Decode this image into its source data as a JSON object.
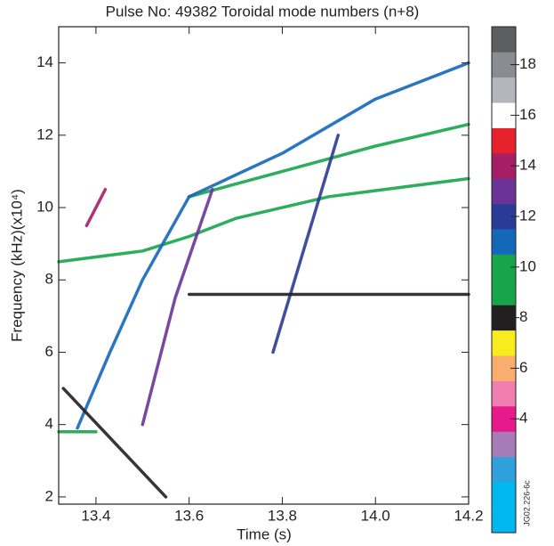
{
  "chart_data": {
    "type": "spectrogram",
    "title": "Pulse No: 49382 Toroidal mode numbers (n+8)",
    "x_label": "Time (s)",
    "y_label": "Frequency (kHz)(x10⁴)",
    "side_label": "JG02.226-6c",
    "xlim": [
      13.32,
      14.2
    ],
    "ylim": [
      1.8,
      15
    ],
    "xticks": [
      13.4,
      13.6,
      13.8,
      {
        "value": 14,
        "label": "14.0"
      },
      14.2
    ],
    "yticks": [
      2,
      4,
      6,
      8,
      10,
      12,
      14
    ],
    "series": [
      {
        "color": "#16a54a",
        "x": [
          13.32,
          13.5,
          13.6,
          13.7,
          13.9,
          14.2
        ],
        "values": [
          8.5,
          8.8,
          9.2,
          9.7,
          10.3,
          10.8
        ]
      },
      {
        "color": "#16a54a",
        "x": [
          13.6,
          13.8,
          14.0,
          14.2
        ],
        "values": [
          10.3,
          11.0,
          11.7,
          12.3
        ]
      },
      {
        "color": "#1468b8",
        "x": [
          13.36,
          13.43,
          13.5,
          13.6
        ],
        "values": [
          3.9,
          6.0,
          8.0,
          10.3
        ]
      },
      {
        "color": "#1468b8",
        "x": [
          13.6,
          13.8,
          14.0,
          14.2
        ],
        "values": [
          10.3,
          11.5,
          13.0,
          14.0
        ]
      },
      {
        "color": "#2a3b95",
        "x": [
          13.78,
          13.85,
          13.92
        ],
        "values": [
          6.0,
          9.0,
          12.0
        ]
      },
      {
        "color": "#231f20",
        "x": [
          13.6,
          14.2
        ],
        "values": [
          7.6,
          7.6
        ]
      },
      {
        "color": "#16a54a",
        "x": [
          13.32,
          13.4
        ],
        "values": [
          3.8,
          3.8
        ]
      },
      {
        "color": "#6a3496",
        "x": [
          13.5,
          13.57,
          13.65
        ],
        "values": [
          4.0,
          7.5,
          10.5
        ]
      },
      {
        "color": "#a61e66",
        "x": [
          13.38,
          13.42
        ],
        "values": [
          9.5,
          10.5
        ]
      },
      {
        "color": "#231f20",
        "x": [
          13.33,
          13.55
        ],
        "values": [
          5.0,
          2.0
        ]
      }
    ],
    "colorbar": {
      "clim": [
        -0.5,
        19.5
      ],
      "colors": [
        "#00b7ef",
        "#00b7ef",
        "#2ea1db",
        "#a77bb7",
        "#e8198b",
        "#f07fb0",
        "#f7ae6e",
        "#f8ec1e",
        "#231f20",
        "#16a54a",
        "#16a54a",
        "#1468b8",
        "#2a3b95",
        "#6a3496",
        "#a61e66",
        "#e6212c",
        "#ffffff",
        "#b4b6bd",
        "#8a8c91",
        "#5c5e62"
      ],
      "ticks": [
        4,
        6,
        8,
        10,
        12,
        14,
        16,
        18
      ]
    }
  }
}
